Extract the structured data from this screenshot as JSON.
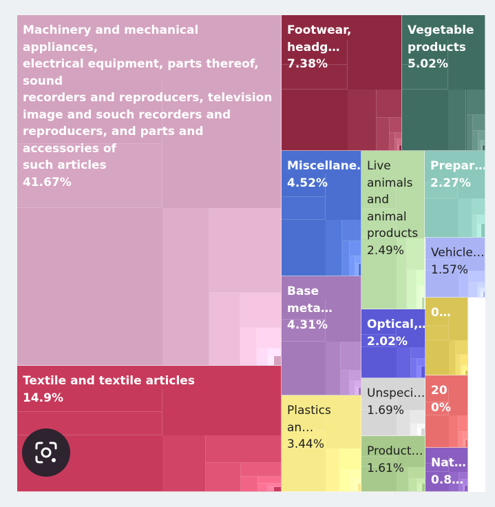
{
  "chart_data": {
    "type": "treemap",
    "title": "",
    "items": [
      {
        "name": "Machinery and mechanical appliances, electrical equipment, parts thereof, sound recorders and reproducers, television image and souch recorders and reproducers, and parts and accessories of such articles",
        "label": "Machinery and mechanical appliances,\nelectrical equipment, parts thereof, sound\nrecorders and reproducers, television\nimage and souch recorders and\nreproducers, and parts and accessories of\nsuch articles",
        "value": "41.67%",
        "color": "#d4a3bf"
      },
      {
        "name": "Textile and textile articles",
        "label": "Textile and textile articles",
        "value": "14.9%",
        "color": "#c83a5c"
      },
      {
        "name": "Footwear, headgear",
        "label": "Footwear, headg…",
        "value": "7.38%",
        "color": "#8e2841"
      },
      {
        "name": "Vegetable products",
        "label": "Vegetable\nproducts",
        "value": "5.02%",
        "color": "#3f6d62"
      },
      {
        "name": "Miscellaneous",
        "label": "Miscellane…",
        "value": "4.52%",
        "color": "#4a6fd0"
      },
      {
        "name": "Base metals",
        "label": "Base meta…",
        "value": "4.31%",
        "color": "#a47ab8"
      },
      {
        "name": "Plastics",
        "label": "Plastics an…",
        "value": "3.44%",
        "color": "#f6ea8a"
      },
      {
        "name": "Live animals and animal products",
        "label": "Live\nanimals\nand\nanimal\nproducts",
        "value": "2.49%",
        "color": "#b9dba6"
      },
      {
        "name": "Prepared",
        "label": "Prepar…",
        "value": "2.27%",
        "color": "#8cc8bb"
      },
      {
        "name": "Optical",
        "label": "Optical,…",
        "value": "2.02%",
        "color": "#5b59d6"
      },
      {
        "name": "Unspecified",
        "label": "Unspeci…",
        "value": "1.69%",
        "color": "#d6d6d6"
      },
      {
        "name": "Products",
        "label": "Product…",
        "value": "1.61%",
        "color": "#a7c98c"
      },
      {
        "name": "Vehicles",
        "label": "Vehicle…",
        "value": "1.57%",
        "color": "#aab4f5"
      },
      {
        "name": "Other",
        "label": "0…",
        "value": "",
        "color": "#d9c456"
      },
      {
        "name": "Natural",
        "label": "Nat…",
        "value": "0.8…",
        "color": "#8a5ec0"
      },
      {
        "name": "Small 20",
        "label": "20\n0%",
        "value": "",
        "color": "#e86e6e"
      }
    ]
  },
  "ui": {
    "lens_icon": "camera-search-icon"
  }
}
